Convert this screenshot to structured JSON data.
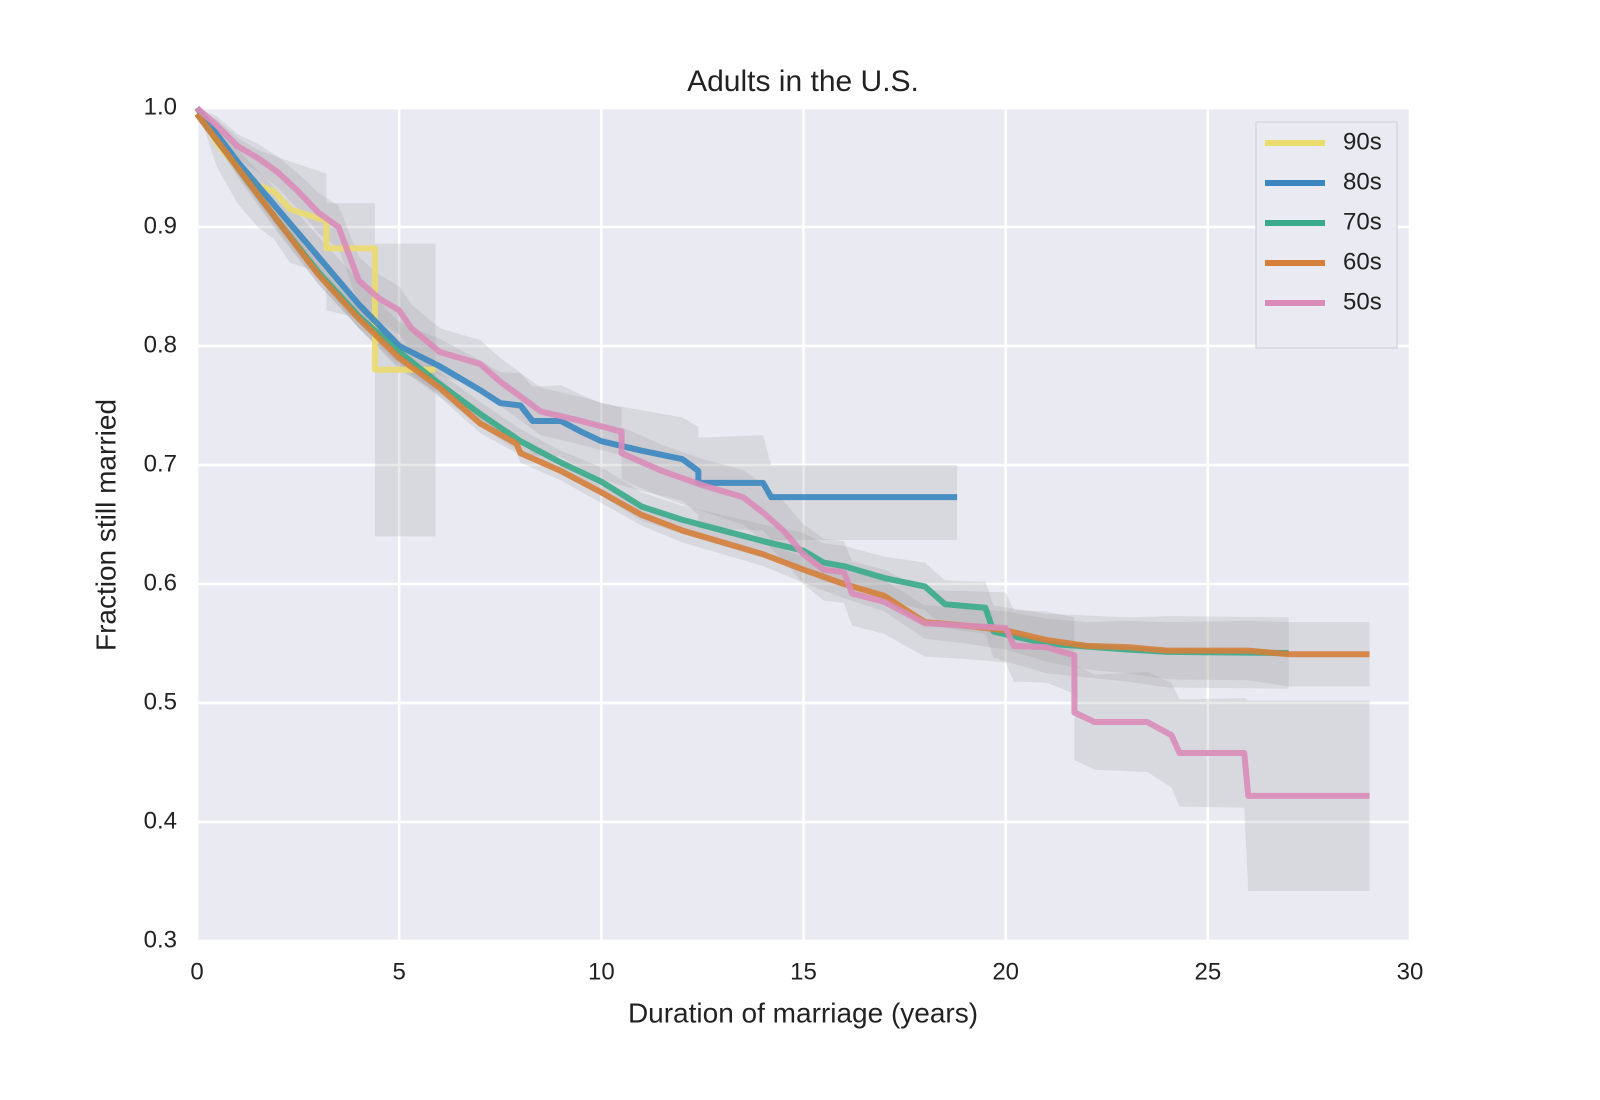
{
  "chart_data": {
    "type": "line",
    "title": "Adults in the U.S.",
    "xlabel": "Duration of marriage (years)",
    "ylabel": "Fraction still married",
    "xlim": [
      0,
      30
    ],
    "ylim": [
      0.3,
      1.0
    ],
    "xticks": [
      0,
      5,
      10,
      15,
      20,
      25,
      30
    ],
    "yticks": [
      0.3,
      0.4,
      0.5,
      0.6,
      0.7,
      0.8,
      0.9,
      {
        "value": 1,
        "label": "1.0"
      }
    ],
    "grid": true,
    "legend": "upper right",
    "band_color": "#9a9a9a",
    "series": [
      {
        "name": "90s",
        "color": "#ebdc6e",
        "x": [
          0,
          0.5,
          1,
          1.5,
          1.9,
          2.3,
          3.2,
          3.2,
          4.4,
          4.4,
          5.9
        ],
        "values": [
          1.0,
          0.97,
          0.95,
          0.935,
          0.93,
          0.915,
          0.905,
          0.882,
          0.882,
          0.78,
          0.78
        ],
        "lower": [
          1.0,
          0.95,
          0.92,
          0.9,
          0.89,
          0.87,
          0.86,
          0.83,
          0.82,
          0.64,
          0.64
        ],
        "upper": [
          1.0,
          0.99,
          0.975,
          0.965,
          0.96,
          0.955,
          0.945,
          0.92,
          0.92,
          0.886,
          0.886
        ]
      },
      {
        "name": "80s",
        "color": "#3a87c0",
        "x": [
          0,
          1,
          2,
          3,
          4,
          5,
          6,
          7,
          7.5,
          8,
          8.3,
          9,
          9.5,
          10,
          11,
          12,
          12.4,
          12.4,
          14,
          14.2,
          18.8
        ],
        "values": [
          1.0,
          0.955,
          0.915,
          0.875,
          0.835,
          0.8,
          0.783,
          0.763,
          0.752,
          0.75,
          0.737,
          0.737,
          0.728,
          0.72,
          0.712,
          0.705,
          0.695,
          0.685,
          0.685,
          0.673,
          0.673
        ],
        "lower": [
          1.0,
          0.945,
          0.9,
          0.858,
          0.815,
          0.78,
          0.76,
          0.738,
          0.726,
          0.723,
          0.708,
          0.707,
          0.697,
          0.688,
          0.678,
          0.67,
          0.658,
          0.647,
          0.645,
          0.637,
          0.637
        ],
        "upper": [
          1.0,
          0.965,
          0.93,
          0.892,
          0.855,
          0.82,
          0.806,
          0.788,
          0.778,
          0.777,
          0.766,
          0.767,
          0.759,
          0.752,
          0.746,
          0.74,
          0.732,
          0.723,
          0.725,
          0.7,
          0.7
        ]
      },
      {
        "name": "70s",
        "color": "#3aab8a",
        "x": [
          0,
          1,
          2,
          3,
          4,
          5,
          6,
          7,
          8,
          9,
          10,
          11,
          12,
          13,
          14,
          15,
          15.5,
          16,
          17,
          18,
          18.5,
          19.5,
          19.7,
          21,
          23,
          24,
          27
        ],
        "values": [
          0.995,
          0.95,
          0.905,
          0.862,
          0.825,
          0.795,
          0.768,
          0.743,
          0.72,
          0.702,
          0.686,
          0.665,
          0.654,
          0.645,
          0.636,
          0.628,
          0.618,
          0.615,
          0.605,
          0.598,
          0.583,
          0.58,
          0.56,
          0.55,
          0.545,
          0.543,
          0.542
        ],
        "lower": [
          0.995,
          0.942,
          0.895,
          0.852,
          0.815,
          0.785,
          0.758,
          0.733,
          0.71,
          0.692,
          0.674,
          0.653,
          0.642,
          0.632,
          0.622,
          0.613,
          0.602,
          0.598,
          0.587,
          0.578,
          0.563,
          0.558,
          0.538,
          0.525,
          0.518,
          0.513,
          0.512
        ],
        "upper": [
          0.995,
          0.958,
          0.915,
          0.872,
          0.835,
          0.805,
          0.778,
          0.753,
          0.73,
          0.712,
          0.698,
          0.677,
          0.666,
          0.658,
          0.65,
          0.643,
          0.634,
          0.632,
          0.623,
          0.618,
          0.603,
          0.602,
          0.582,
          0.575,
          0.572,
          0.573,
          0.572
        ]
      },
      {
        "name": "60s",
        "color": "#d57f3a",
        "x": [
          0,
          1,
          2,
          3,
          4,
          5,
          6,
          7,
          7.9,
          8,
          9,
          10,
          11,
          12,
          13,
          14,
          15,
          16,
          17,
          18,
          19,
          20,
          21,
          22,
          23,
          24,
          26,
          27,
          29
        ],
        "values": [
          0.995,
          0.95,
          0.905,
          0.86,
          0.823,
          0.79,
          0.765,
          0.735,
          0.718,
          0.71,
          0.695,
          0.677,
          0.658,
          0.645,
          0.635,
          0.625,
          0.612,
          0.6,
          0.59,
          0.568,
          0.565,
          0.561,
          0.553,
          0.548,
          0.547,
          0.544,
          0.544,
          0.541,
          0.541
        ],
        "lower": [
          0.995,
          0.944,
          0.897,
          0.852,
          0.815,
          0.782,
          0.757,
          0.727,
          0.71,
          0.702,
          0.687,
          0.668,
          0.649,
          0.635,
          0.625,
          0.615,
          0.601,
          0.588,
          0.577,
          0.554,
          0.55,
          0.545,
          0.535,
          0.528,
          0.525,
          0.52,
          0.519,
          0.514,
          0.514
        ],
        "upper": [
          0.995,
          0.956,
          0.913,
          0.868,
          0.831,
          0.798,
          0.773,
          0.743,
          0.726,
          0.718,
          0.703,
          0.686,
          0.667,
          0.655,
          0.645,
          0.635,
          0.623,
          0.612,
          0.603,
          0.582,
          0.58,
          0.577,
          0.571,
          0.568,
          0.569,
          0.568,
          0.569,
          0.568,
          0.568
        ]
      },
      {
        "name": "50s",
        "color": "#d98cb8",
        "x": [
          0,
          0.5,
          1,
          1.5,
          2,
          2.5,
          3,
          3.5,
          4,
          4.5,
          5,
          5.3,
          6,
          7,
          7.5,
          8.5,
          9.5,
          10.5,
          10.5,
          11.5,
          12.5,
          13.5,
          14,
          14.5,
          15,
          15.5,
          16,
          16.2,
          17,
          18,
          19,
          20,
          20.2,
          21,
          21.7,
          21.7,
          22.2,
          23.5,
          24.1,
          24.3,
          25.9,
          26,
          29
        ],
        "values": [
          1.0,
          0.985,
          0.968,
          0.958,
          0.946,
          0.93,
          0.912,
          0.9,
          0.855,
          0.84,
          0.83,
          0.815,
          0.795,
          0.785,
          0.77,
          0.745,
          0.737,
          0.728,
          0.71,
          0.695,
          0.683,
          0.673,
          0.66,
          0.645,
          0.625,
          0.612,
          0.61,
          0.592,
          0.585,
          0.567,
          0.565,
          0.563,
          0.548,
          0.547,
          0.54,
          0.492,
          0.484,
          0.484,
          0.473,
          0.458,
          0.458,
          0.422,
          0.422
        ],
        "lower": [
          1.0,
          0.977,
          0.958,
          0.946,
          0.933,
          0.915,
          0.895,
          0.882,
          0.835,
          0.82,
          0.81,
          0.795,
          0.775,
          0.765,
          0.75,
          0.725,
          0.717,
          0.708,
          0.688,
          0.673,
          0.661,
          0.65,
          0.636,
          0.62,
          0.6,
          0.586,
          0.584,
          0.565,
          0.558,
          0.539,
          0.537,
          0.534,
          0.518,
          0.517,
          0.508,
          0.452,
          0.444,
          0.442,
          0.429,
          0.413,
          0.412,
          0.342,
          0.342
        ],
        "upper": [
          1.0,
          0.993,
          0.978,
          0.97,
          0.959,
          0.945,
          0.929,
          0.918,
          0.875,
          0.86,
          0.85,
          0.835,
          0.815,
          0.805,
          0.79,
          0.765,
          0.757,
          0.748,
          0.732,
          0.717,
          0.705,
          0.696,
          0.684,
          0.67,
          0.65,
          0.638,
          0.636,
          0.619,
          0.612,
          0.595,
          0.594,
          0.593,
          0.578,
          0.577,
          0.572,
          0.532,
          0.524,
          0.526,
          0.517,
          0.503,
          0.504,
          0.502,
          0.502
        ]
      }
    ]
  }
}
